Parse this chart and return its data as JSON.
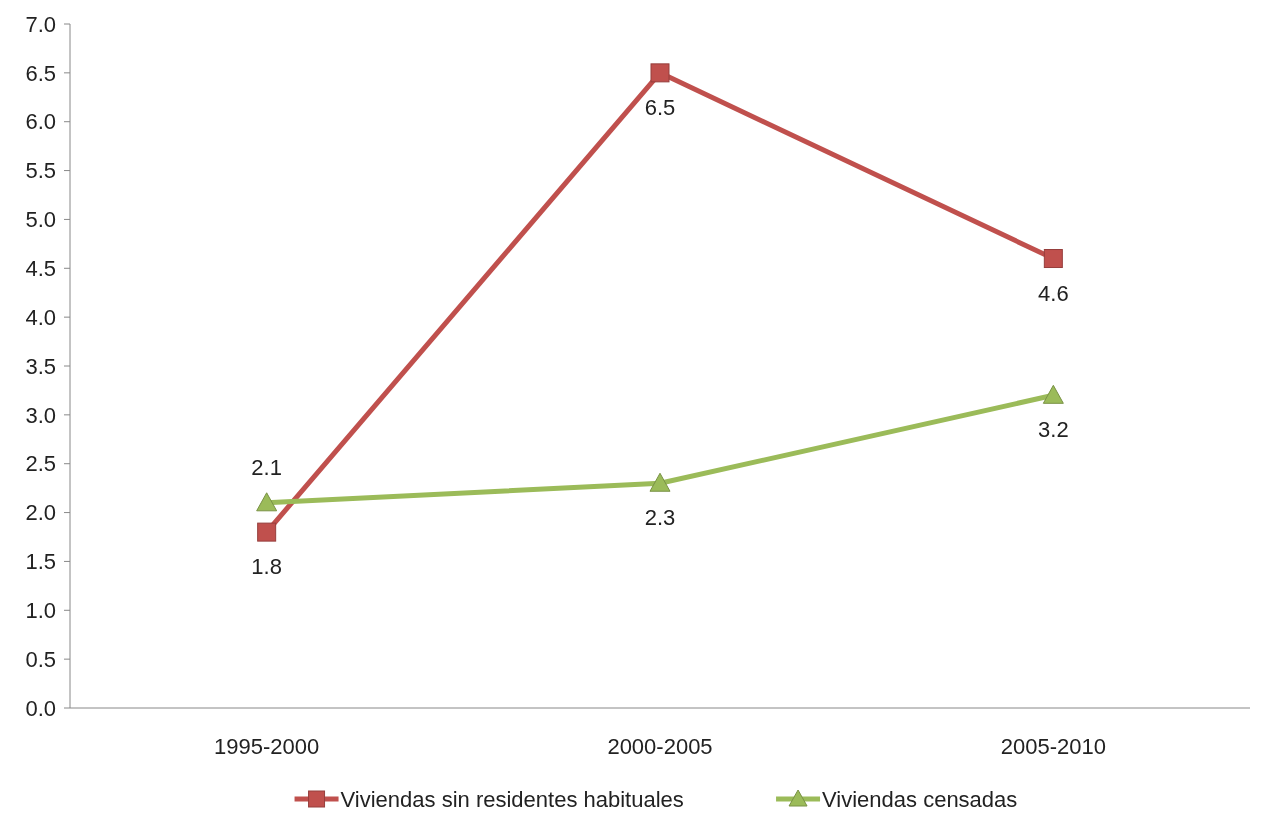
{
  "chart_data": {
    "type": "line",
    "categories": [
      "1995-2000",
      "2000-2005",
      "2005-2010"
    ],
    "series": [
      {
        "name": "Viviendas sin residentes habituales",
        "color": "#c0504d",
        "marker": "square",
        "values": [
          1.8,
          6.5,
          4.6
        ]
      },
      {
        "name": "Viviendas censadas",
        "color": "#9bbb59",
        "marker": "triangle",
        "values": [
          2.1,
          2.3,
          3.2
        ]
      }
    ],
    "ylim": [
      0,
      7
    ],
    "yticks": [
      {
        "value": 0,
        "label": "0.0"
      },
      {
        "value": 0.5,
        "label": "0.5"
      },
      {
        "value": 1,
        "label": "1.0"
      },
      {
        "value": 1.5,
        "label": "1.5"
      },
      {
        "value": 2,
        "label": "2.0"
      },
      {
        "value": 2.5,
        "label": "2.5"
      },
      {
        "value": 3,
        "label": "3.0"
      },
      {
        "value": 3.5,
        "label": "3.5"
      },
      {
        "value": 4,
        "label": "4.0"
      },
      {
        "value": 4.5,
        "label": "4.5"
      },
      {
        "value": 5,
        "label": "5.0"
      },
      {
        "value": 5.5,
        "label": "5.5"
      },
      {
        "value": 6,
        "label": "6.0"
      },
      {
        "value": 6.5,
        "label": "6.5"
      },
      {
        "value": 7,
        "label": "7.0"
      }
    ],
    "grid": false,
    "legend": "bottom",
    "data_labels": true,
    "line_style": "solid"
  }
}
